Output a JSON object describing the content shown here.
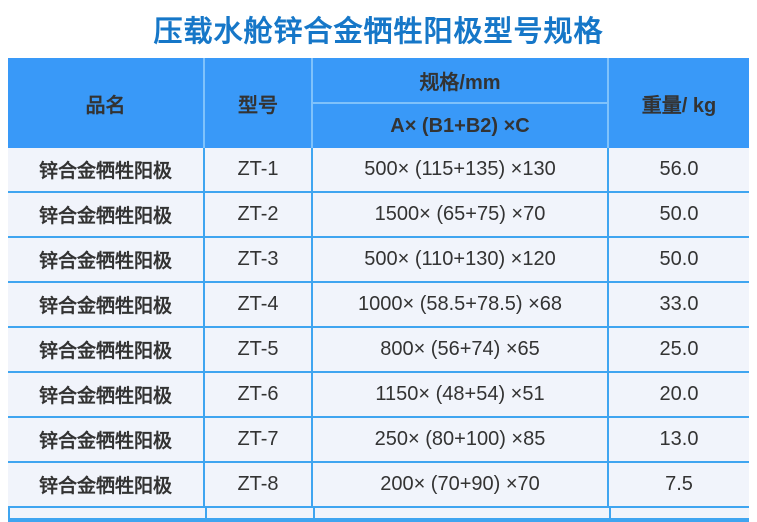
{
  "title": "压载水舱锌合金牺牲阳极型号规格",
  "colors": {
    "title_blue": "#1677C8",
    "header_bg": "#3999F8",
    "header_divider": "#7FC2FB",
    "row_bg": "#F1F4FB",
    "border_blue": "#3FA5F0",
    "text_dark": "#333333"
  },
  "table": {
    "columns": {
      "product": "品名",
      "model": "型号",
      "spec": "规格/mm",
      "weight": "重量/ kg"
    },
    "spec_subheader": "A× (B1+B2) ×C",
    "rows": [
      {
        "name": "锌合金牺牲阳极",
        "model": "ZT-1",
        "spec": "500× (115+135) ×130",
        "weight": "56.0"
      },
      {
        "name": "锌合金牺牲阳极",
        "model": "ZT-2",
        "spec": "1500× (65+75) ×70",
        "weight": "50.0"
      },
      {
        "name": "锌合金牺牲阳极",
        "model": "ZT-3",
        "spec": "500× (110+130) ×120",
        "weight": "50.0"
      },
      {
        "name": "锌合金牺牲阳极",
        "model": "ZT-4",
        "spec": "1000× (58.5+78.5) ×68",
        "weight": "33.0"
      },
      {
        "name": "锌合金牺牲阳极",
        "model": "ZT-5",
        "spec": "800× (56+74) ×65",
        "weight": "25.0"
      },
      {
        "name": "锌合金牺牲阳极",
        "model": "ZT-6",
        "spec": "1150× (48+54) ×51",
        "weight": "20.0"
      },
      {
        "name": "锌合金牺牲阳极",
        "model": "ZT-7",
        "spec": "250× (80+100) ×85",
        "weight": "13.0"
      },
      {
        "name": "锌合金牺牲阳极",
        "model": "ZT-8",
        "spec": "200× (70+90) ×70",
        "weight": "7.5"
      }
    ]
  }
}
